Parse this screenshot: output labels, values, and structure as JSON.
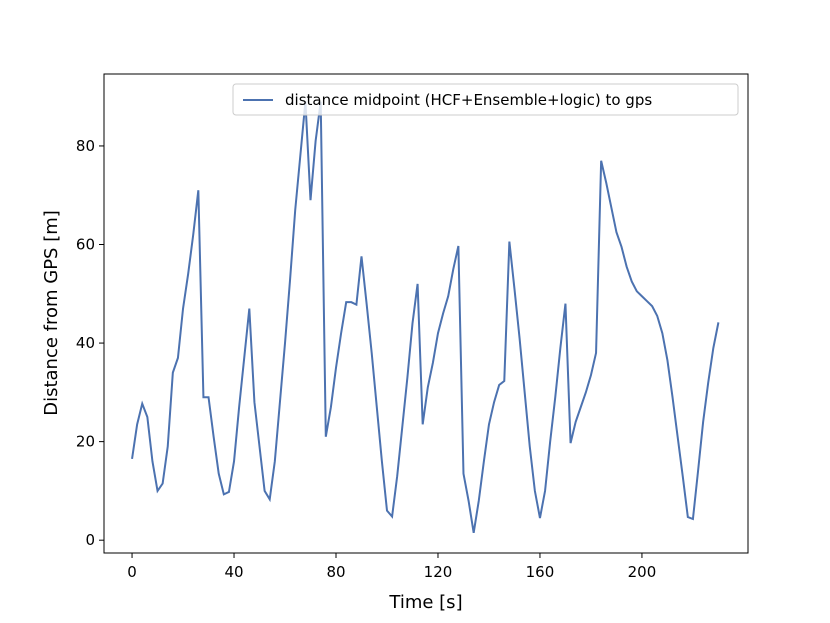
{
  "chart_data": {
    "type": "line",
    "xlabel": "Time [s]",
    "ylabel": "Distance from GPS [m]",
    "xlim": [
      -11,
      241.6
    ],
    "ylim": [
      -2.6,
      94.6
    ],
    "xticks": [
      0,
      40,
      80,
      120,
      160,
      200
    ],
    "yticks": [
      0,
      20,
      40,
      60,
      80
    ],
    "legend": "upper right",
    "grid": false,
    "x": [
      0,
      2,
      4,
      6,
      8,
      10,
      12,
      14,
      16,
      18,
      20,
      22,
      24,
      26,
      28,
      30,
      32,
      34,
      36,
      38,
      40,
      42,
      44,
      46,
      48,
      50,
      52,
      54,
      56,
      58,
      60,
      62,
      64,
      66,
      68,
      70,
      72,
      74,
      76,
      78,
      80,
      82,
      84,
      86,
      88,
      90,
      92,
      94,
      96,
      98,
      100,
      102,
      104,
      106,
      108,
      110,
      112,
      114,
      116,
      118,
      120,
      122,
      124,
      126,
      128,
      130,
      132,
      134,
      136,
      138,
      140,
      142,
      144,
      146,
      148,
      150,
      152,
      154,
      156,
      158,
      160,
      162,
      164,
      166,
      168,
      170,
      172,
      174,
      176,
      178,
      180,
      182,
      184,
      186,
      188,
      190,
      192,
      194,
      196,
      198,
      200,
      202,
      204,
      206,
      208,
      210,
      212,
      214,
      216,
      218,
      220,
      222,
      224,
      226,
      228,
      230
    ],
    "series": [
      {
        "name": "distance midpoint (HCF+Ensemble+logic) to gps",
        "color": "#4c72b0",
        "values": [
          16.5,
          23.5,
          27.7,
          25,
          16,
          10,
          11.5,
          19,
          34,
          37,
          47,
          54,
          62,
          71,
          29,
          29,
          21,
          13.5,
          9.3,
          9.8,
          16,
          27,
          37,
          47,
          28,
          19,
          10,
          8.3,
          16,
          28,
          40,
          53,
          67,
          78,
          89,
          69,
          81,
          89,
          21,
          27,
          35,
          42,
          48.3,
          48.3,
          47.8,
          57.6,
          48,
          38,
          27,
          16,
          6,
          4.8,
          13,
          23,
          33,
          44,
          52,
          23.5,
          31,
          36,
          42,
          46,
          49.5,
          55,
          59.7,
          13.5,
          8,
          1.5,
          8,
          16,
          23.5,
          28,
          31.5,
          32.3,
          60.6,
          51,
          41,
          30,
          19,
          10,
          4.5,
          10,
          20,
          29,
          39,
          48,
          19.7,
          24,
          27,
          30,
          33.5,
          38,
          77,
          72.5,
          67.5,
          62.5,
          59.5,
          55.5,
          52.5,
          50.5,
          49.5,
          48.5,
          47.5,
          45.5,
          42,
          36.5,
          29,
          21,
          13,
          4.7,
          4.3,
          14,
          24,
          32,
          39,
          44.2
        ]
      }
    ]
  }
}
